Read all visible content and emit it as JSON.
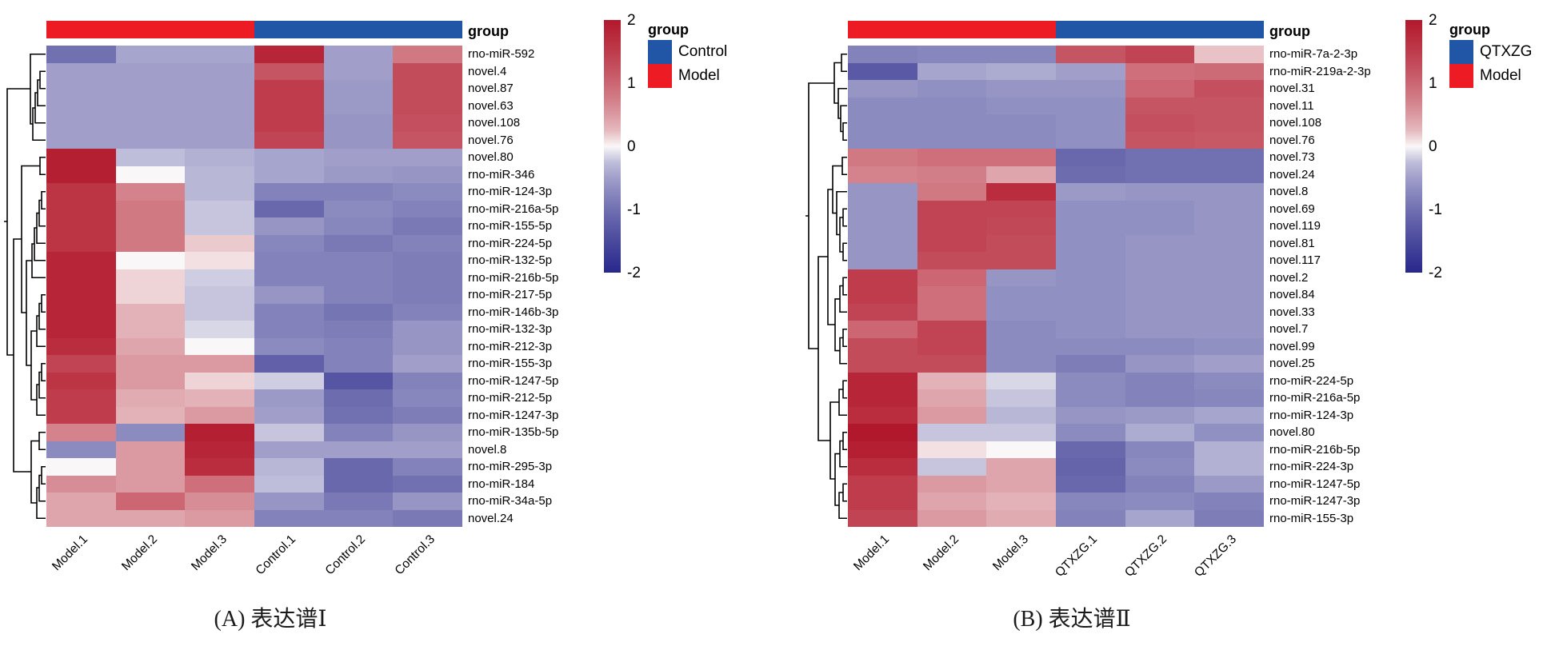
{
  "colors": {
    "heatmap_positive_end": "#b2182b",
    "heatmap_negative_end": "#28288c",
    "heatmap_midpoint": "#f9f7f7",
    "annotation_model_red": "#ed1c24",
    "annotation_group_blue": "#2056a5",
    "dendrogram_line": "#000000"
  },
  "chart_data": [
    {
      "type": "heatmap",
      "panel": "A",
      "caption": "(A) 表达谱Ⅰ",
      "annotation_title": "group",
      "columns": [
        "Model.1",
        "Model.2",
        "Model.3",
        "Control.1",
        "Control.2",
        "Control.3"
      ],
      "column_groups": [
        "Model",
        "Model",
        "Model",
        "Control",
        "Control",
        "Control"
      ],
      "rows": [
        "rno-miR-592",
        "novel.4",
        "novel.87",
        "novel.63",
        "novel.108",
        "novel.76",
        "novel.80",
        "rno-miR-346",
        "rno-miR-124-3p",
        "rno-miR-216a-5p",
        "rno-miR-155-5p",
        "rno-miR-224-5p",
        "rno-miR-132-5p",
        "rno-miR-216b-5p",
        "rno-miR-217-5p",
        "rno-miR-146b-3p",
        "rno-miR-132-3p",
        "rno-miR-212-3p",
        "rno-miR-155-3p",
        "rno-miR-1247-5p",
        "rno-miR-212-5p",
        "rno-miR-1247-3p",
        "rno-miR-135b-5p",
        "novel.8",
        "rno-miR-295-3p",
        "rno-miR-184",
        "rno-miR-34a-5p",
        "novel.24"
      ],
      "values": [
        [
          -1.0,
          -0.45,
          -0.45,
          1.8,
          -0.5,
          0.8
        ],
        [
          -0.5,
          -0.5,
          -0.5,
          1.2,
          -0.5,
          1.3
        ],
        [
          -0.5,
          -0.5,
          -0.5,
          1.5,
          -0.55,
          1.3
        ],
        [
          -0.5,
          -0.5,
          -0.5,
          1.5,
          -0.55,
          1.3
        ],
        [
          -0.5,
          -0.5,
          -0.5,
          1.5,
          -0.6,
          1.25
        ],
        [
          -0.5,
          -0.5,
          -0.5,
          1.4,
          -0.6,
          1.2
        ],
        [
          1.9,
          -0.25,
          -0.35,
          -0.45,
          -0.5,
          -0.5
        ],
        [
          1.9,
          0.0,
          -0.3,
          -0.45,
          -0.55,
          -0.6
        ],
        [
          1.6,
          0.7,
          -0.3,
          -0.8,
          -0.8,
          -0.7
        ],
        [
          1.6,
          0.8,
          -0.2,
          -1.1,
          -0.7,
          -0.8
        ],
        [
          1.6,
          0.8,
          -0.2,
          -0.6,
          -0.75,
          -0.9
        ],
        [
          1.6,
          0.8,
          0.15,
          -0.75,
          -0.9,
          -0.8
        ],
        [
          1.8,
          0.0,
          0.05,
          -0.8,
          -0.8,
          -0.85
        ],
        [
          1.8,
          0.1,
          -0.15,
          -0.8,
          -0.8,
          -0.85
        ],
        [
          1.8,
          0.1,
          -0.2,
          -0.6,
          -0.8,
          -0.85
        ],
        [
          1.8,
          0.3,
          -0.2,
          -0.8,
          -0.95,
          -0.8
        ],
        [
          1.8,
          0.3,
          -0.1,
          -0.8,
          -0.85,
          -0.6
        ],
        [
          1.7,
          0.4,
          0.0,
          -0.7,
          -0.8,
          -0.6
        ],
        [
          1.4,
          0.5,
          0.5,
          -1.2,
          -0.8,
          -0.5
        ],
        [
          1.6,
          0.5,
          0.1,
          -0.15,
          -1.35,
          -0.8
        ],
        [
          1.5,
          0.35,
          0.3,
          -0.55,
          -1.05,
          -0.75
        ],
        [
          1.5,
          0.3,
          0.5,
          -0.5,
          -1.0,
          -0.85
        ],
        [
          0.7,
          -0.7,
          1.9,
          -0.2,
          -0.8,
          -0.6
        ],
        [
          -0.7,
          0.5,
          1.8,
          -0.5,
          -0.5,
          -0.5
        ],
        [
          0.0,
          0.5,
          1.7,
          -0.3,
          -1.1,
          -0.8
        ],
        [
          0.6,
          0.5,
          0.9,
          -0.25,
          -1.1,
          -1.0
        ],
        [
          0.4,
          1.0,
          0.6,
          -0.6,
          -0.9,
          -0.6
        ],
        [
          0.4,
          0.4,
          0.5,
          -0.8,
          -0.8,
          -0.9
        ]
      ],
      "zlim": [
        -2,
        2
      ],
      "colorbar_ticks": [
        "2",
        "1",
        "0",
        "-1",
        "-2"
      ],
      "legend": {
        "title": "group",
        "entries": [
          {
            "label": "Control",
            "color": "#2056a5"
          },
          {
            "label": "Model",
            "color": "#ed1c24"
          }
        ]
      }
    },
    {
      "type": "heatmap",
      "panel": "B",
      "caption": "(B) 表达谱Ⅱ",
      "annotation_title": "group",
      "columns": [
        "Model.1",
        "Model.2",
        "Model.3",
        "QTXZG.1",
        "QTXZG.2",
        "QTXZG.3"
      ],
      "column_groups": [
        "Model",
        "Model",
        "Model",
        "QTXZG",
        "QTXZG",
        "QTXZG"
      ],
      "rows": [
        "rno-miR-7a-2-3p",
        "rno-miR-219a-2-3p",
        "novel.31",
        "novel.11",
        "novel.108",
        "novel.76",
        "novel.73",
        "novel.24",
        "novel.8",
        "novel.69",
        "novel.119",
        "novel.81",
        "novel.117",
        "novel.2",
        "novel.84",
        "novel.33",
        "novel.7",
        "novel.99",
        "novel.25",
        "rno-miR-224-5p",
        "rno-miR-216a-5p",
        "rno-miR-124-3p",
        "novel.80",
        "rno-miR-216b-5p",
        "rno-miR-224-3p",
        "rno-miR-1247-5p",
        "rno-miR-1247-3p",
        "rno-miR-155-3p"
      ],
      "values": [
        [
          -0.8,
          -0.75,
          -0.75,
          1.2,
          1.4,
          0.2
        ],
        [
          -1.3,
          -0.45,
          -0.4,
          -0.5,
          0.9,
          0.95
        ],
        [
          -0.6,
          -0.65,
          -0.6,
          -0.6,
          1.0,
          1.25
        ],
        [
          -0.7,
          -0.7,
          -0.65,
          -0.65,
          1.2,
          1.2
        ],
        [
          -0.7,
          -0.7,
          -0.7,
          -0.65,
          1.25,
          1.2
        ],
        [
          -0.7,
          -0.7,
          -0.7,
          -0.65,
          1.2,
          1.15
        ],
        [
          0.8,
          0.9,
          0.9,
          -1.1,
          -1.0,
          -1.0
        ],
        [
          0.7,
          0.75,
          0.4,
          -1.05,
          -1.0,
          -1.0
        ],
        [
          -0.6,
          0.8,
          1.7,
          -0.55,
          -0.6,
          -0.6
        ],
        [
          -0.6,
          1.4,
          1.4,
          -0.65,
          -0.65,
          -0.6
        ],
        [
          -0.6,
          1.4,
          1.35,
          -0.65,
          -0.65,
          -0.6
        ],
        [
          -0.6,
          1.4,
          1.3,
          -0.65,
          -0.6,
          -0.6
        ],
        [
          -0.6,
          1.3,
          1.3,
          -0.65,
          -0.6,
          -0.6
        ],
        [
          1.5,
          1.0,
          -0.6,
          -0.65,
          -0.6,
          -0.6
        ],
        [
          1.5,
          0.9,
          -0.65,
          -0.65,
          -0.6,
          -0.6
        ],
        [
          1.4,
          0.9,
          -0.65,
          -0.65,
          -0.6,
          -0.6
        ],
        [
          1.0,
          1.4,
          -0.7,
          -0.65,
          -0.6,
          -0.6
        ],
        [
          1.3,
          1.4,
          -0.7,
          -0.7,
          -0.7,
          -0.65
        ],
        [
          1.3,
          1.3,
          -0.7,
          -0.85,
          -0.6,
          -0.5
        ],
        [
          1.8,
          0.3,
          -0.1,
          -0.7,
          -0.8,
          -0.7
        ],
        [
          1.8,
          0.4,
          -0.2,
          -0.7,
          -0.8,
          -0.75
        ],
        [
          1.7,
          0.5,
          -0.3,
          -0.6,
          -0.55,
          -0.45
        ],
        [
          2.0,
          -0.2,
          -0.2,
          -0.7,
          -0.4,
          -0.65
        ],
        [
          1.9,
          0.05,
          0.0,
          -1.1,
          -0.75,
          -0.35
        ],
        [
          1.7,
          -0.2,
          0.4,
          -1.15,
          -0.7,
          -0.35
        ],
        [
          1.5,
          0.5,
          0.4,
          -1.1,
          -0.8,
          -0.55
        ],
        [
          1.5,
          0.4,
          0.3,
          -0.75,
          -0.7,
          -0.8
        ],
        [
          1.4,
          0.5,
          0.35,
          -0.8,
          -0.45,
          -0.85
        ]
      ],
      "zlim": [
        -2,
        2
      ],
      "colorbar_ticks": [
        "2",
        "1",
        "0",
        "-1",
        "-2"
      ],
      "legend": {
        "title": "group",
        "entries": [
          {
            "label": "QTXZG",
            "color": "#2056a5"
          },
          {
            "label": "Model",
            "color": "#ed1c24"
          }
        ]
      }
    }
  ]
}
